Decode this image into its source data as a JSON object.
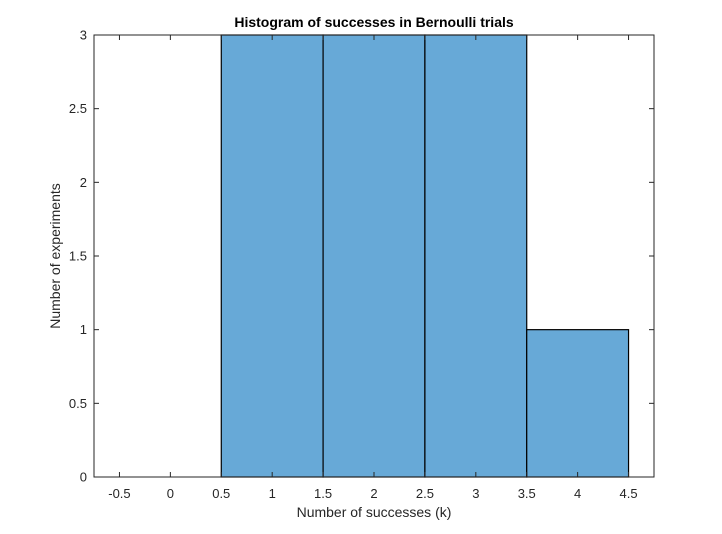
{
  "chart_data": {
    "type": "bar",
    "title": "Histogram of successes in Bernoulli trials",
    "xlabel": "Number of successes (k)",
    "ylabel": "Number of experiments",
    "xlim": [
      -0.75,
      4.75
    ],
    "ylim": [
      0,
      3
    ],
    "xticks": [
      "-0.5",
      "0",
      "0.5",
      "1",
      "1.5",
      "2",
      "2.5",
      "3",
      "3.5",
      "4",
      "4.5"
    ],
    "xtick_values": [
      -0.5,
      0,
      0.5,
      1,
      1.5,
      2,
      2.5,
      3,
      3.5,
      4,
      4.5
    ],
    "yticks": [
      "0",
      "0.5",
      "1",
      "1.5",
      "2",
      "2.5",
      "3"
    ],
    "ytick_values": [
      0,
      0.5,
      1,
      1.5,
      2,
      2.5,
      3
    ],
    "bins": [
      {
        "start": 0.5,
        "end": 1.5,
        "value": 3
      },
      {
        "start": 1.5,
        "end": 2.5,
        "value": 3
      },
      {
        "start": 2.5,
        "end": 3.5,
        "value": 3
      },
      {
        "start": 3.5,
        "end": 4.5,
        "value": 1
      }
    ],
    "bar_color": "#67a9d7",
    "edge_color": "#000000",
    "grid": false
  }
}
